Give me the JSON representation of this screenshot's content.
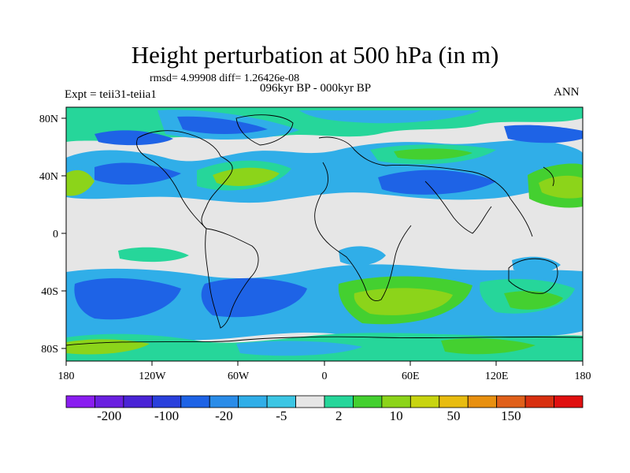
{
  "title": "Height perturbation at 500 hPa (in m)",
  "stats_line": "rmsd= 4.99908 diff= 1.26426e-08",
  "subtitle": "096kyr BP - 000kyr BP",
  "experiment_label": "Expt = teii31-teiia1",
  "season_label": "ANN",
  "x_ticks": [
    "180",
    "120W",
    "60W",
    "0",
    "60E",
    "120E",
    "180"
  ],
  "y_ticks": [
    "80N",
    "40N",
    "0",
    "40S",
    "80S"
  ],
  "colorbar": {
    "colors": [
      "#8a1ef0",
      "#6a20e0",
      "#4a24d6",
      "#2a40dc",
      "#1e63e6",
      "#2a8ce8",
      "#30aee8",
      "#3cc6e4",
      "#e6e6e6",
      "#26d69a",
      "#44d030",
      "#8cd41a",
      "#c8d410",
      "#e8bc10",
      "#e89010",
      "#e0601a",
      "#d83010",
      "#e01010"
    ],
    "labels": [
      "-200",
      "-100",
      "-20",
      "-5",
      "2",
      "10",
      "50",
      "150"
    ]
  },
  "map_colors": {
    "background": "#e6e6e6",
    "light_blue": "#30aee8",
    "blue": "#1e63e6",
    "dark_blue": "#2a40dc",
    "teal": "#26d69a",
    "green": "#44d030",
    "yellow_green": "#8cd41a",
    "coast": "#000000"
  }
}
